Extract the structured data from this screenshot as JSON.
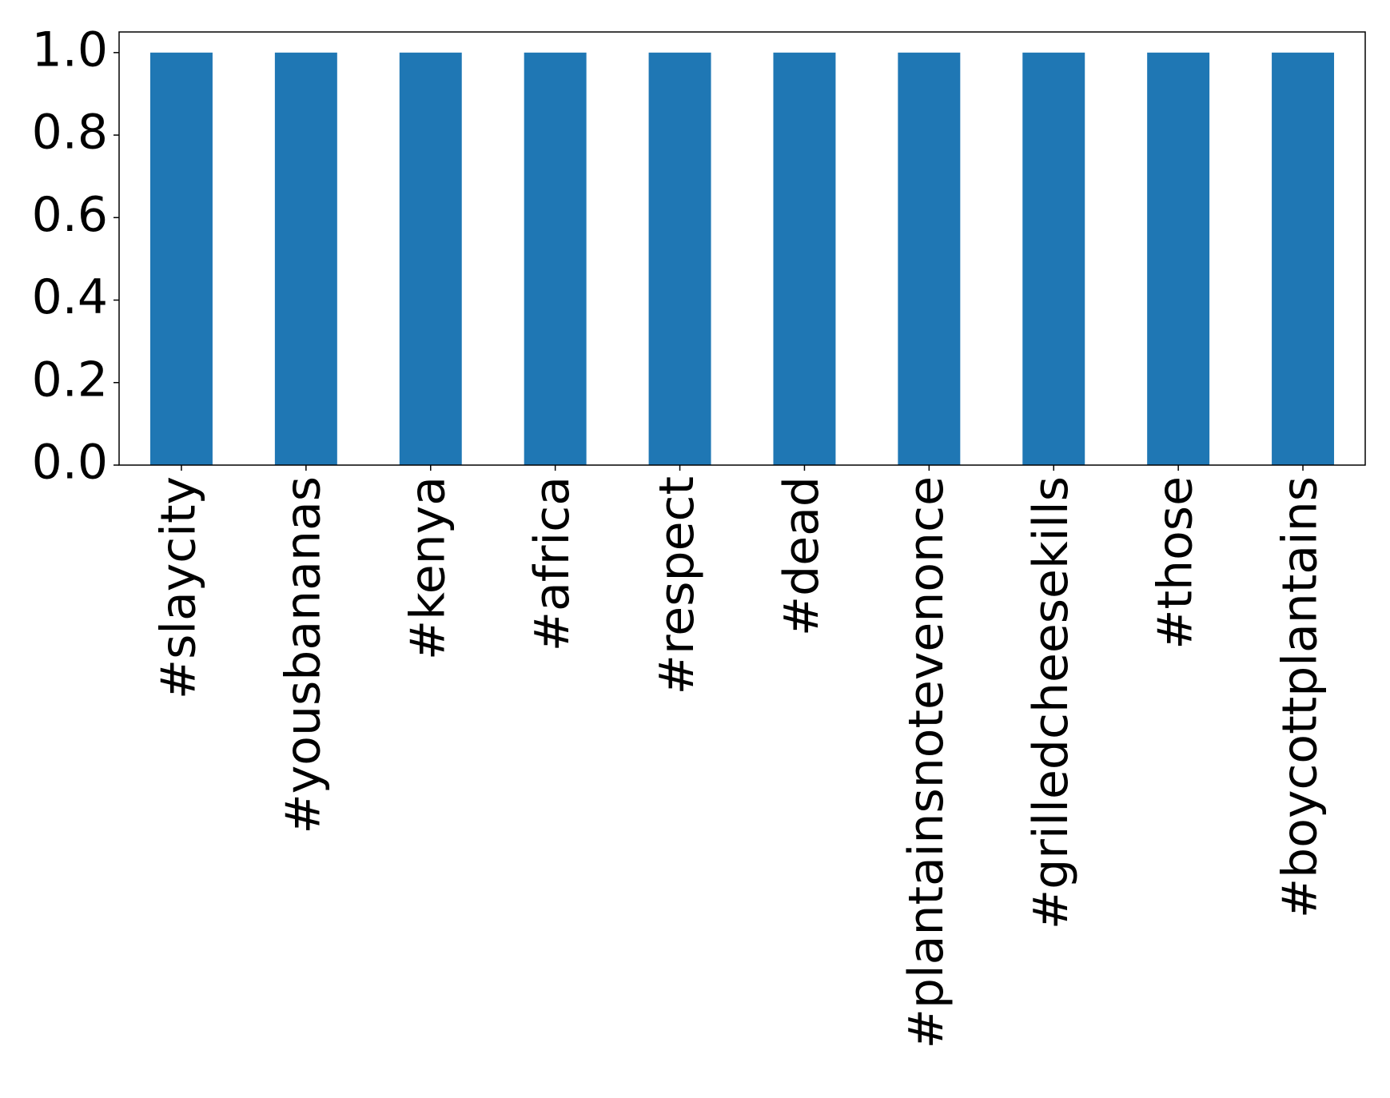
{
  "chart_data": {
    "type": "bar",
    "categories": [
      "#slaycity",
      "#yousbananas",
      "#kenya",
      "#africa",
      "#respect",
      "#dead",
      "#plantainsnotevenonce",
      "#grilledcheesekills",
      "#those",
      "#boycottplantains"
    ],
    "values": [
      1,
      1,
      1,
      1,
      1,
      1,
      1,
      1,
      1,
      1
    ],
    "color": "#1f77b4",
    "ylim": [
      0,
      1.05
    ],
    "yticks": [
      {
        "value": 0,
        "label": "0.0"
      },
      {
        "value": 0.2,
        "label": "0.2"
      },
      {
        "value": 0.4,
        "label": "0.4"
      },
      {
        "value": 0.6,
        "label": "0.6"
      },
      {
        "value": 0.8,
        "label": "0.8"
      },
      {
        "value": 1,
        "label": "1.0"
      }
    ],
    "grid": false
  }
}
